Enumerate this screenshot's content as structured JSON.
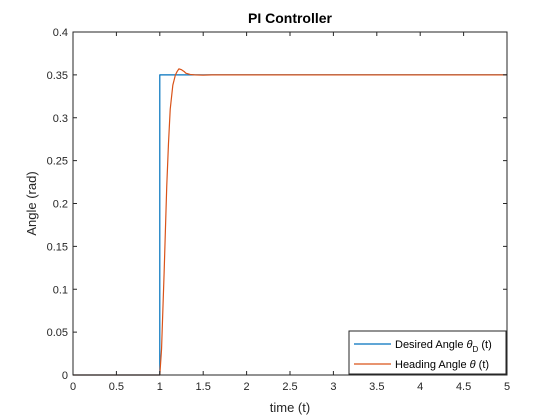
{
  "chart_data": {
    "type": "line",
    "title": "PI Controller",
    "xlabel": "time (t)",
    "ylabel": "Angle (rad)",
    "xlim": [
      0,
      5
    ],
    "ylim": [
      0,
      0.4
    ],
    "xticks": [
      0,
      0.5,
      1,
      1.5,
      2,
      2.5,
      3,
      3.5,
      4,
      4.5,
      5
    ],
    "xtick_labels": [
      "0",
      "0.5",
      "1",
      "1.5",
      "2",
      "2.5",
      "3",
      "3.5",
      "4",
      "4.5",
      "5"
    ],
    "yticks": [
      0,
      0.05,
      0.1,
      0.15,
      0.2,
      0.25,
      0.3,
      0.35,
      0.4
    ],
    "ytick_labels": [
      "0",
      "0.05",
      "0.1",
      "0.15",
      "0.2",
      "0.25",
      "0.3",
      "0.35",
      "0.4"
    ],
    "grid": false,
    "legend_location": "bottom-right",
    "series": [
      {
        "name": "Desired Angle θD (t)",
        "legend_main": "Desired Angle ",
        "legend_symbol": "θ",
        "legend_sub": "D",
        "legend_tail": " (t)",
        "color": "#0072BD",
        "x": [
          0,
          1.0,
          1.0,
          5
        ],
        "y": [
          0,
          0,
          0.35,
          0.35
        ]
      },
      {
        "name": "Heading Angle θ (t)",
        "legend_main": "Heading Angle ",
        "legend_symbol": "θ",
        "legend_sub": "",
        "legend_tail": " (t)",
        "color": "#D95319",
        "x": [
          0,
          1.0,
          1.02,
          1.05,
          1.08,
          1.1,
          1.12,
          1.15,
          1.18,
          1.2,
          1.22,
          1.25,
          1.28,
          1.3,
          1.35,
          1.4,
          1.5,
          1.6,
          2.0,
          3.0,
          4.0,
          5.0
        ],
        "y": [
          0,
          0,
          0.03,
          0.12,
          0.22,
          0.27,
          0.31,
          0.338,
          0.35,
          0.354,
          0.357,
          0.356,
          0.354,
          0.352,
          0.3505,
          0.35,
          0.3497,
          0.35,
          0.35,
          0.35,
          0.35,
          0.35
        ]
      }
    ]
  }
}
